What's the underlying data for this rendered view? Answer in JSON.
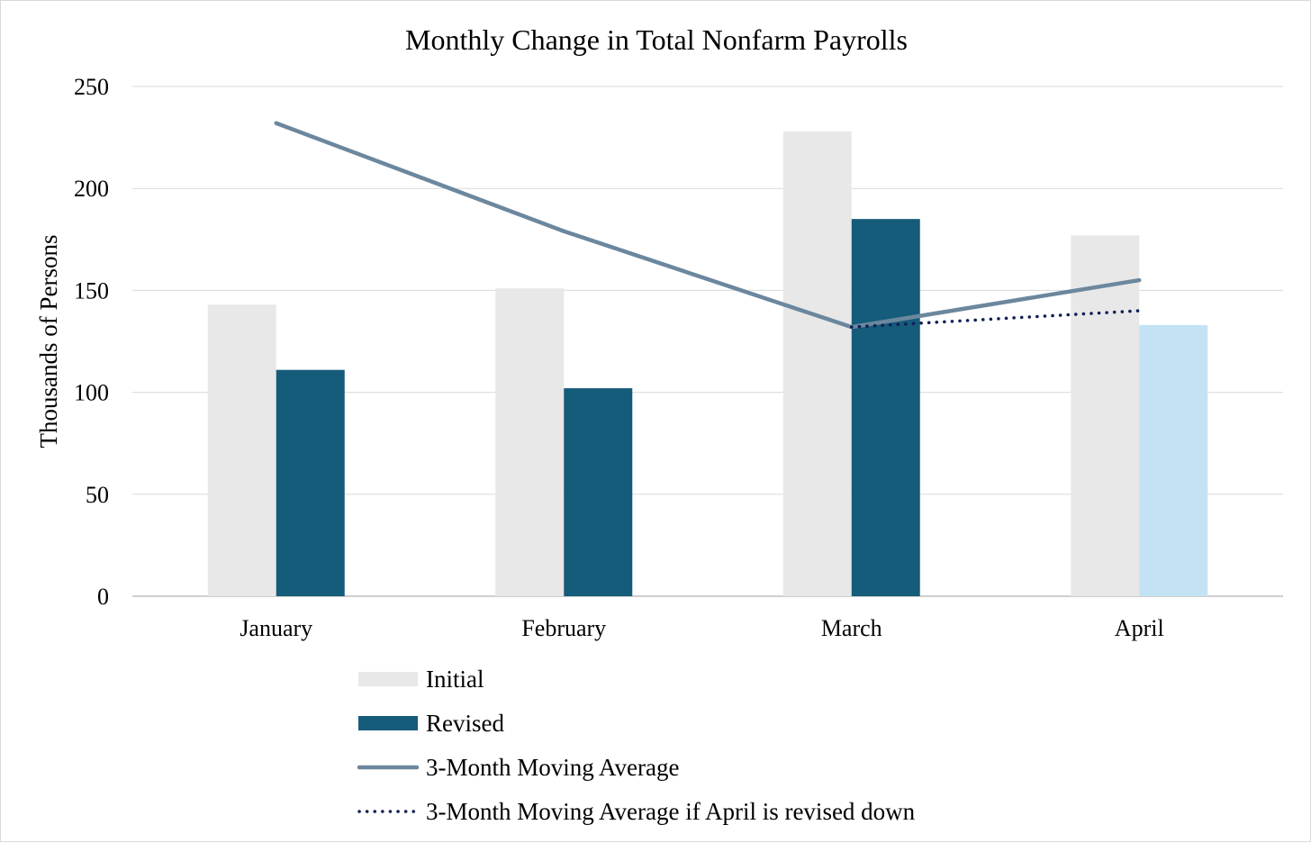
{
  "chart_data": {
    "type": "bar",
    "title": "Monthly Change in Total Nonfarm Payrolls",
    "xlabel": "",
    "ylabel": "Thousands of Persons",
    "categories": [
      "January",
      "February",
      "March",
      "April"
    ],
    "ylim": [
      0,
      250
    ],
    "yticks": [
      0,
      50,
      100,
      150,
      200,
      250
    ],
    "grid": true,
    "legend_position": "bottom",
    "series": [
      {
        "name": "Initial",
        "type": "bar",
        "values": [
          143,
          151,
          228,
          177
        ],
        "color": "#e8e8e8"
      },
      {
        "name": "Revised",
        "type": "bar",
        "values": [
          111,
          102,
          185,
          133
        ],
        "color": "#155b7a",
        "highlight_colors": [
          "#155b7a",
          "#155b7a",
          "#155b7a",
          "#c3e3f4"
        ]
      },
      {
        "name": "3-Month Moving Average",
        "type": "line",
        "values": [
          232,
          179,
          132,
          155
        ],
        "color": "#6c879d",
        "style": "solid"
      },
      {
        "name": "3-Month Moving Average if April is revised down",
        "type": "line",
        "x": [
          "March",
          "April"
        ],
        "values": [
          132,
          140
        ],
        "color": "#0e1f54",
        "style": "dotted"
      }
    ]
  }
}
